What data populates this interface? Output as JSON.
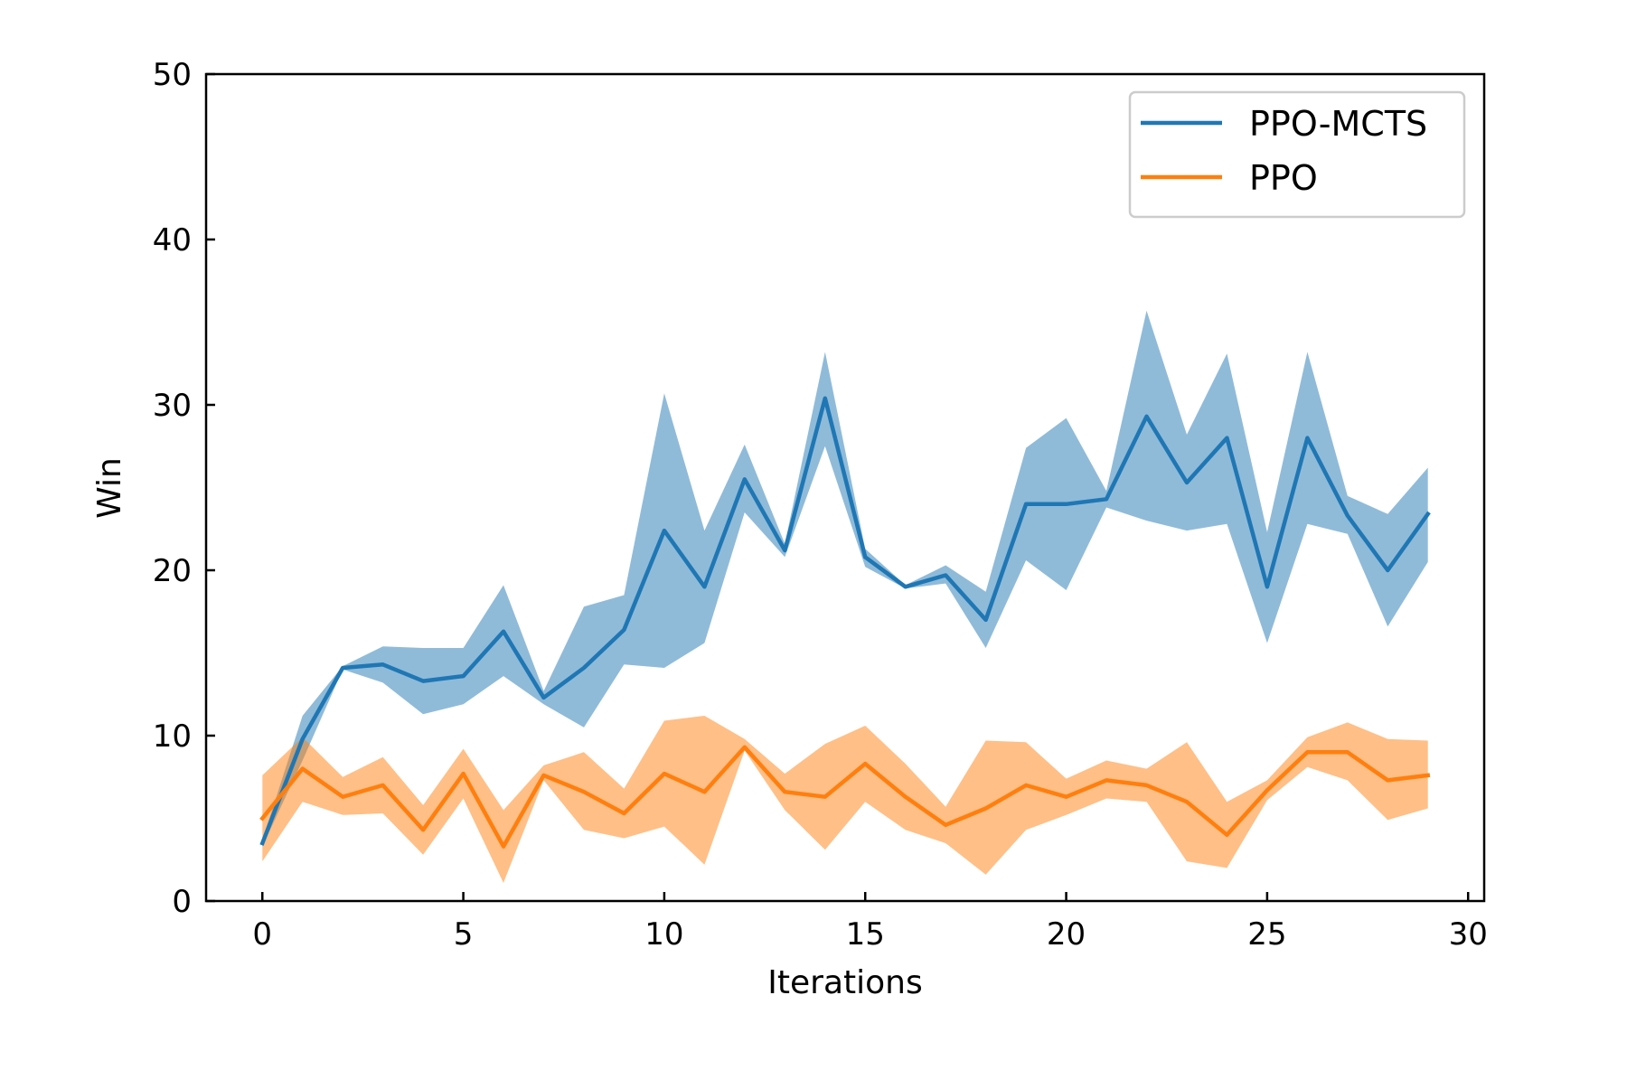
{
  "chart_data": {
    "type": "line",
    "title": "",
    "xlabel": "Iterations",
    "ylabel": "Win",
    "xlim": [
      -1.4,
      30.4
    ],
    "ylim": [
      0,
      50
    ],
    "xticks": [
      0,
      5,
      10,
      15,
      20,
      25,
      30
    ],
    "xtick_labels": [
      "0",
      "5",
      "10",
      "15",
      "20",
      "25",
      "30"
    ],
    "yticks": [
      0,
      10,
      20,
      30,
      40,
      50
    ],
    "ytick_labels": [
      "0",
      "10",
      "20",
      "30",
      "40",
      "50"
    ],
    "grid": false,
    "legend_position": "top-right",
    "x": [
      0,
      1,
      2,
      3,
      4,
      5,
      6,
      7,
      8,
      9,
      10,
      11,
      12,
      13,
      14,
      15,
      16,
      17,
      18,
      19,
      20,
      21,
      22,
      23,
      24,
      25,
      26,
      27,
      28,
      29
    ],
    "series": [
      {
        "name": "PPO-MCTS",
        "color": "#1f77b4",
        "band_color": "#1f77b4",
        "values": [
          3.5,
          9.8,
          14.1,
          14.3,
          13.3,
          13.6,
          16.3,
          12.3,
          14.1,
          16.4,
          22.4,
          19.0,
          25.5,
          21.2,
          30.4,
          20.8,
          19.0,
          19.7,
          17.0,
          24.0,
          24.0,
          24.3,
          29.3,
          25.3,
          28.0,
          19.0,
          28.0,
          23.3,
          20.0,
          23.4
        ],
        "lower": [
          3.3,
          8.5,
          14.0,
          13.2,
          11.3,
          11.9,
          13.6,
          11.9,
          10.5,
          14.3,
          14.1,
          15.6,
          23.5,
          20.8,
          27.5,
          20.2,
          18.9,
          19.2,
          15.3,
          20.6,
          18.8,
          23.8,
          23.0,
          22.4,
          22.8,
          15.6,
          22.8,
          22.2,
          16.6,
          20.5
        ],
        "upper": [
          3.7,
          11.2,
          14.2,
          15.4,
          15.3,
          15.3,
          19.1,
          12.7,
          17.8,
          18.5,
          30.7,
          22.4,
          27.6,
          21.6,
          33.2,
          21.3,
          19.1,
          20.3,
          18.7,
          27.4,
          29.2,
          24.8,
          35.7,
          28.2,
          33.1,
          22.3,
          33.2,
          24.5,
          23.4,
          26.2
        ]
      },
      {
        "name": "PPO",
        "color": "#ff7f0e",
        "band_color": "#ff7f0e",
        "values": [
          5.0,
          8.0,
          6.3,
          7.0,
          4.3,
          7.7,
          3.3,
          7.6,
          6.6,
          5.3,
          7.7,
          6.6,
          9.3,
          6.6,
          6.3,
          8.3,
          6.3,
          4.6,
          5.6,
          7.0,
          6.3,
          7.3,
          7.0,
          6.0,
          4.0,
          6.7,
          9.0,
          9.0,
          7.3,
          7.6
        ],
        "lower": [
          2.4,
          6.0,
          5.2,
          5.3,
          2.8,
          6.2,
          1.1,
          7.3,
          4.3,
          3.8,
          4.5,
          2.2,
          9.1,
          5.5,
          3.1,
          6.0,
          4.3,
          3.5,
          1.6,
          4.3,
          5.2,
          6.2,
          6.0,
          2.4,
          2.0,
          6.1,
          8.1,
          7.3,
          4.9,
          5.6
        ],
        "upper": [
          7.6,
          9.9,
          7.5,
          8.7,
          5.8,
          9.2,
          5.5,
          8.2,
          9.0,
          6.8,
          10.9,
          11.2,
          9.8,
          7.7,
          9.5,
          10.6,
          8.3,
          5.7,
          9.7,
          9.6,
          7.4,
          8.5,
          8.0,
          9.6,
          6.0,
          7.3,
          9.9,
          10.8,
          9.8,
          9.7
        ]
      }
    ]
  }
}
